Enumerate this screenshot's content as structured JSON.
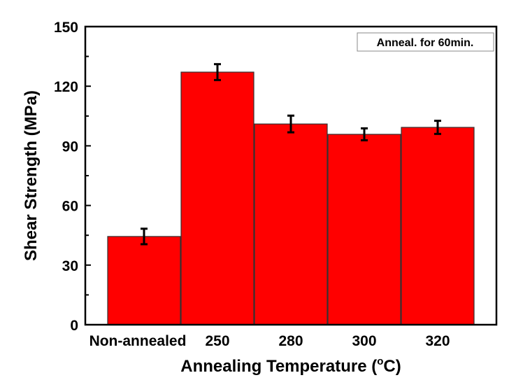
{
  "chart_data": {
    "type": "bar",
    "title": "",
    "xlabel": "Annealing Temperature (",
    "xlabel_sup": "o",
    "xlabel_unit": "C)",
    "ylabel": "Shear Strength (MPa)",
    "ylim": [
      0,
      150
    ],
    "yticks": [
      0,
      30,
      60,
      90,
      120,
      150
    ],
    "yticks_labels": [
      "0",
      "30",
      "60",
      "90",
      "120",
      "150"
    ],
    "categories": [
      "Non-annealed",
      "250",
      "280",
      "300",
      "320"
    ],
    "values": [
      44.4,
      127.1,
      101.0,
      95.8,
      99.3
    ],
    "errors": [
      3.9,
      4.0,
      4.2,
      3.0,
      3.3
    ],
    "annotation": "Anneal. for 60min.",
    "grid": false,
    "bar_color": "#ff0000",
    "bar_edge_color": "#333333"
  }
}
